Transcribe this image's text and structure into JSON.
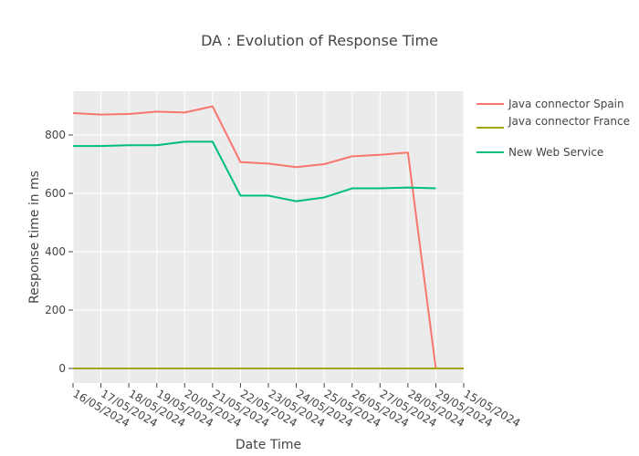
{
  "colors": {
    "plot_bg": "#ebebeb",
    "grid": "#ffffff",
    "text": "#444444"
  },
  "chart_data": {
    "type": "line",
    "title": "DA : Evolution of  Response Time",
    "xlabel": "Date Time",
    "ylabel": "Response time in ms",
    "x_ticks": [
      "16/05/2024",
      "17/05/2024",
      "18/05/2024",
      "19/05/2024",
      "20/05/2024",
      "21/05/2024",
      "22/05/2024",
      "23/05/2024",
      "24/05/2024",
      "25/05/2024",
      "26/05/2024",
      "27/05/2024",
      "28/05/2024",
      "29/05/2024",
      "15/05/2024"
    ],
    "y_ticks": [
      0,
      200,
      400,
      600,
      800
    ],
    "ylim": [
      -50,
      950
    ],
    "grid": true,
    "legend_position": "right",
    "series": [
      {
        "name": "Java connector Spain",
        "color": "#f8766d",
        "points": [
          [
            0,
            875
          ],
          [
            1,
            870
          ],
          [
            2,
            872
          ],
          [
            3,
            880
          ],
          [
            4,
            877
          ],
          [
            5,
            898
          ],
          [
            6,
            707
          ],
          [
            7,
            702
          ],
          [
            8,
            690
          ],
          [
            9,
            700
          ],
          [
            10,
            727
          ],
          [
            11,
            732
          ],
          [
            12,
            740
          ],
          [
            13,
            0
          ]
        ]
      },
      {
        "name": "Java connector France",
        "color": "#a3a500",
        "points": [
          [
            0,
            0
          ],
          [
            1,
            0
          ],
          [
            2,
            0
          ],
          [
            3,
            0
          ],
          [
            4,
            0
          ],
          [
            5,
            0
          ],
          [
            6,
            0
          ],
          [
            7,
            0
          ],
          [
            8,
            0
          ],
          [
            9,
            0
          ],
          [
            10,
            0
          ],
          [
            11,
            0
          ],
          [
            12,
            0
          ],
          [
            13,
            0
          ],
          [
            14,
            0
          ]
        ]
      },
      {
        "name": "New Web Service",
        "color": "#00bf7d",
        "points": [
          [
            0,
            762
          ],
          [
            1,
            762
          ],
          [
            2,
            765
          ],
          [
            3,
            765
          ],
          [
            4,
            777
          ],
          [
            5,
            777
          ],
          [
            6,
            592
          ],
          [
            7,
            592
          ],
          [
            8,
            573
          ],
          [
            9,
            586
          ],
          [
            10,
            617
          ],
          [
            11,
            617
          ],
          [
            12,
            620
          ],
          [
            13,
            617
          ]
        ]
      }
    ]
  }
}
